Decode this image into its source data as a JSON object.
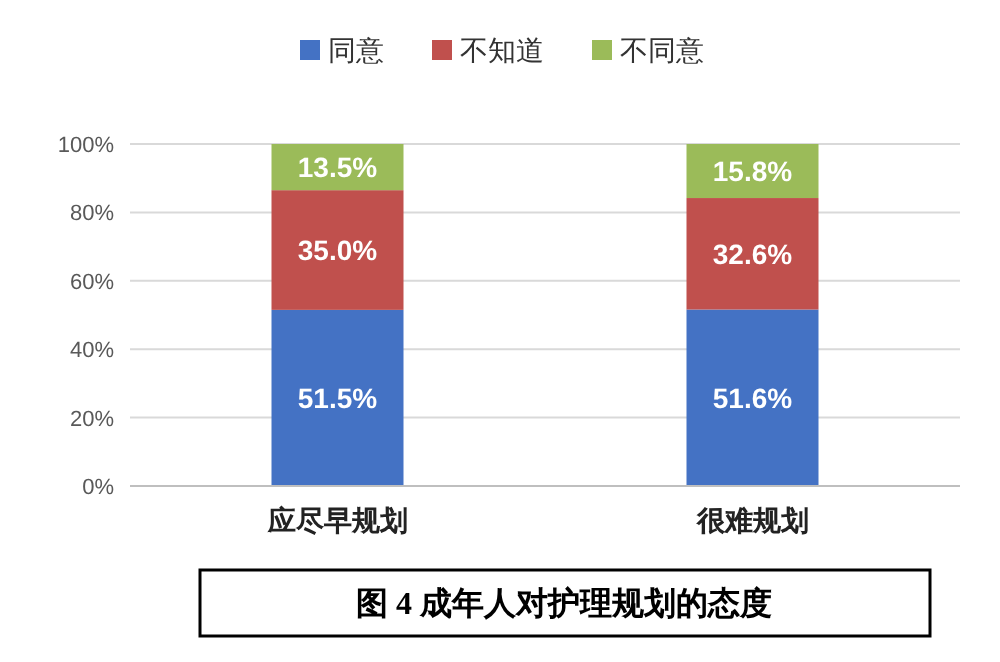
{
  "chart_data": {
    "type": "bar",
    "stacked": true,
    "categories": [
      "应尽早规划",
      "很难规划"
    ],
    "series": [
      {
        "name": "同意",
        "color": "#4472c4",
        "values": [
          51.5,
          51.6
        ],
        "value_labels": [
          "51.5%",
          "51.6%"
        ]
      },
      {
        "name": "不知道",
        "color": "#c0504d",
        "values": [
          35.0,
          32.6
        ],
        "value_labels": [
          "35.0%",
          "32.6%"
        ]
      },
      {
        "name": "不同意",
        "color": "#9bbb59",
        "values": [
          13.5,
          15.8
        ],
        "value_labels": [
          "13.5%",
          "15.8%"
        ]
      }
    ],
    "ylim": [
      0,
      100
    ],
    "yticks": [
      {
        "value": 0,
        "label": "0%"
      },
      {
        "value": 20,
        "label": "20%"
      },
      {
        "value": 40,
        "label": "40%"
      },
      {
        "value": 60,
        "label": "60%"
      },
      {
        "value": 80,
        "label": "80%"
      },
      {
        "value": 100,
        "label": "100%"
      }
    ],
    "grid": "y",
    "legend": "top",
    "annotations": [
      "图 4 成年人对护理规划的态度"
    ]
  }
}
